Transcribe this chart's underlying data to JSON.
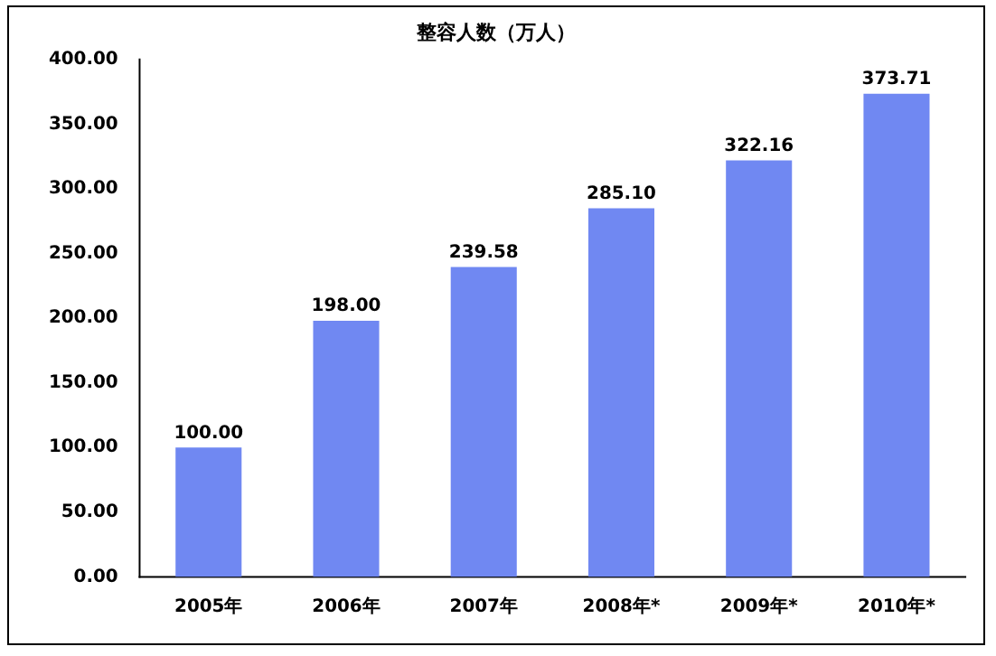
{
  "chart_data": {
    "type": "bar",
    "title": "整容人数（万人）",
    "categories": [
      "2005年",
      "2006年",
      "2007年",
      "2008年*",
      "2009年*",
      "2010年*"
    ],
    "values": [
      100.0,
      198.0,
      239.58,
      285.1,
      322.16,
      373.71
    ],
    "value_labels": [
      "100.00",
      "198.00",
      "239.58",
      "285.10",
      "322.16",
      "373.71"
    ],
    "color": "#7088f2",
    "ylim": [
      0,
      400
    ],
    "yticks": [
      {
        "value": 0,
        "label": "0.00"
      },
      {
        "value": 50,
        "label": "50.00"
      },
      {
        "value": 100,
        "label": "100.00"
      },
      {
        "value": 150,
        "label": "150.00"
      },
      {
        "value": 200,
        "label": "200.00"
      },
      {
        "value": 250,
        "label": "250.00"
      },
      {
        "value": 300,
        "label": "300.00"
      },
      {
        "value": 350,
        "label": "350.00"
      },
      {
        "value": 400,
        "label": "400.00"
      }
    ],
    "grid": false,
    "legend": false
  }
}
